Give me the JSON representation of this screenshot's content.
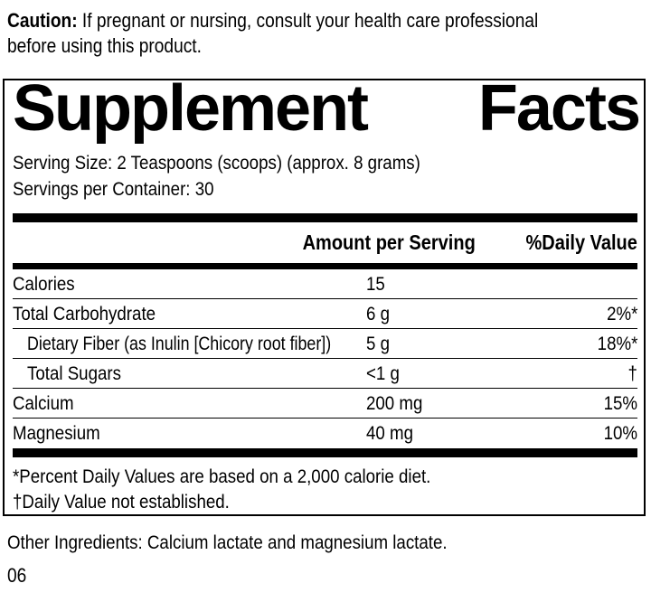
{
  "caution": {
    "label": "Caution:",
    "line1": "If pregnant or nursing, consult your health care professional",
    "line2": "before using this product."
  },
  "panel": {
    "title_left": "Supplement",
    "title_right": "Facts",
    "serving_size": "Serving Size: 2 Teaspoons (scoops) (approx. 8 grams)",
    "servings_per_container": "Servings per Container: 30",
    "columns": {
      "amount": "Amount per Serving",
      "daily_value": "%Daily Value"
    },
    "rows": [
      {
        "name": "Calories",
        "amount": "15",
        "dv": "",
        "indent": false
      },
      {
        "name": "Total Carbohydrate",
        "amount": "6 g",
        "dv": "2%*",
        "indent": false
      },
      {
        "name": "Dietary Fiber (as Inulin [Chicory root fiber])",
        "amount": "5 g",
        "dv": "18%*",
        "indent": true
      },
      {
        "name": "Total Sugars",
        "amount": "<1 g",
        "dv": "†",
        "indent": true
      },
      {
        "name": "Calcium",
        "amount": "200 mg",
        "dv": "15%",
        "indent": false
      },
      {
        "name": "Magnesium",
        "amount": "40 mg",
        "dv": "10%",
        "indent": false
      }
    ],
    "footnotes": [
      "*Percent Daily Values are based on a 2,000 calorie diet.",
      "†Daily Value not established."
    ]
  },
  "other_ingredients": "Other Ingredients: Calcium lactate and magnesium lactate.",
  "code": "06",
  "colors": {
    "text": "#000000",
    "rule": "#000000",
    "background": "#ffffff"
  }
}
